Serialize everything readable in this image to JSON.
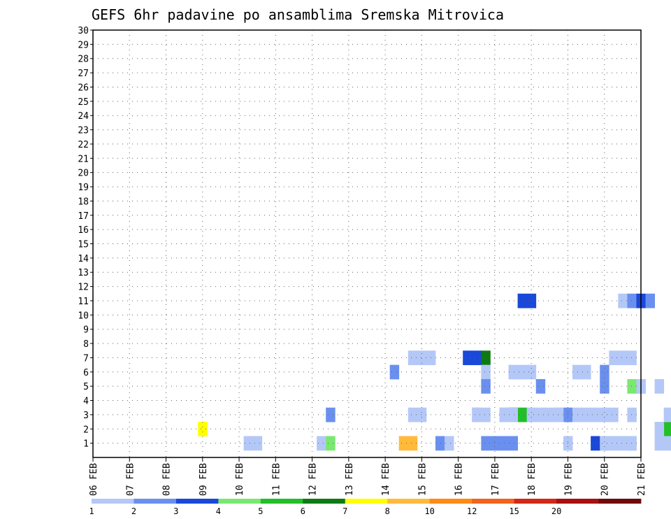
{
  "chart_data": {
    "type": "heatmap",
    "title": "GEFS 6hr padavine po ansamblima Sremska Mitrovica",
    "xlabel": "",
    "ylabel": "",
    "x_ticks": [
      "06 FEB",
      "07 FEB",
      "08 FEB",
      "09 FEB",
      "10 FEB",
      "11 FEB",
      "12 FEB",
      "13 FEB",
      "14 FEB",
      "15 FEB",
      "16 FEB",
      "17 FEB",
      "18 FEB",
      "19 FEB",
      "20 FEB",
      "21 FEB"
    ],
    "x_range_days": [
      0,
      15
    ],
    "steps_per_day": 4,
    "y_ticks": [
      "1",
      "2",
      "3",
      "4",
      "5",
      "6",
      "7",
      "8",
      "9",
      "10",
      "11",
      "12",
      "13",
      "14",
      "15",
      "16",
      "17",
      "18",
      "19",
      "20",
      "21",
      "22",
      "23",
      "24",
      "25",
      "26",
      "27",
      "28",
      "29",
      "30"
    ],
    "y_range_members": [
      0,
      30
    ],
    "grid": true,
    "color_scale": {
      "colors": [
        "#b4c8f8",
        "#6a90ef",
        "#1a48d9",
        "#7ae870",
        "#22bf28",
        "#0e7a14",
        "#ffff00",
        "#ffba3c",
        "#ff8a14",
        "#f0641e",
        "#d22818",
        "#a81010",
        "#700a0a"
      ],
      "labels": [
        "1",
        "2",
        "3",
        "4",
        "5",
        "6",
        "7",
        "8",
        "10",
        "12",
        "15",
        "20"
      ]
    },
    "cells": [
      [
        0,
        12,
        2,
        7
      ],
      [
        0,
        17,
        1,
        1
      ],
      [
        0,
        18,
        1,
        1
      ],
      [
        0,
        25,
        1,
        1
      ],
      [
        0,
        26,
        1,
        4
      ],
      [
        0,
        34,
        1,
        8
      ],
      [
        0,
        35,
        1,
        8
      ],
      [
        0,
        56,
        1,
        1
      ],
      [
        0,
        63,
        2,
        5
      ],
      [
        0,
        64,
        2,
        5
      ],
      [
        1,
        22,
        3,
        2
      ],
      [
        1,
        31,
        7,
        1
      ],
      [
        1,
        32,
        7,
        1
      ],
      [
        1,
        33,
        7,
        1
      ],
      [
        1,
        37,
        7,
        3
      ],
      [
        1,
        38,
        7,
        3
      ],
      [
        1,
        39,
        7,
        6
      ],
      [
        1,
        53,
        7,
        1
      ],
      [
        1,
        54,
        7,
        1
      ],
      [
        1,
        55,
        7,
        1
      ],
      [
        1,
        75,
        17,
        1
      ],
      [
        1,
        77,
        21,
        1
      ],
      [
        1,
        78,
        21,
        1
      ],
      [
        2,
        27,
        3,
        1
      ],
      [
        2,
        28,
        3,
        1
      ],
      [
        2,
        34,
        3,
        1
      ],
      [
        2,
        35,
        3,
        1
      ],
      [
        2,
        37,
        3,
        1
      ],
      [
        2,
        38,
        3,
        3
      ],
      [
        2,
        39,
        3,
        5
      ],
      [
        2,
        40,
        3,
        1
      ],
      [
        2,
        43,
        3,
        1
      ],
      [
        2,
        44,
        3,
        2
      ],
      [
        2,
        48,
        3,
        1
      ],
      [
        2,
        55,
        3,
        1
      ],
      [
        2,
        57,
        3,
        1
      ],
      [
        2,
        59,
        3,
        1
      ],
      [
        2,
        74,
        3,
        1
      ],
      [
        2,
        90,
        3,
        1
      ],
      [
        3,
        26,
        1,
        2
      ],
      [
        3,
        27,
        1,
        1
      ],
      [
        3,
        31,
        1,
        2
      ],
      [
        3,
        32,
        1,
        2
      ],
      [
        3,
        33,
        1,
        2
      ],
      [
        3,
        34,
        1,
        2
      ],
      [
        3,
        40,
        1,
        1
      ],
      [
        3,
        43,
        1,
        3
      ],
      [
        3,
        46,
        1,
        1
      ],
      [
        3,
        47,
        1,
        1
      ],
      [
        3,
        55,
        1,
        1
      ],
      [
        3,
        58,
        1,
        1
      ],
      [
        3,
        62,
        1,
        1
      ],
      [
        3,
        63,
        1,
        4
      ],
      [
        3,
        75,
        1,
        1
      ],
      [
        3,
        76,
        1,
        1
      ],
      [
        3,
        87,
        1,
        1
      ],
      [
        4,
        17,
        6,
        2
      ],
      [
        4,
        27,
        6,
        1
      ],
      [
        4,
        30,
        6,
        1
      ],
      [
        4,
        31,
        6,
        1
      ],
      [
        4,
        32,
        6,
        1
      ],
      [
        4,
        37,
        6,
        1
      ],
      [
        4,
        38,
        6,
        1
      ],
      [
        4,
        40,
        6,
        2
      ],
      [
        4,
        51,
        6,
        1
      ],
      [
        4,
        52,
        6,
        2
      ],
      [
        4,
        53,
        6,
        2
      ],
      [
        4,
        60,
        6,
        1
      ],
      [
        4,
        61,
        6,
        1
      ],
      [
        4,
        62,
        6,
        2
      ],
      [
        4,
        64,
        6,
        4
      ],
      [
        4,
        83,
        6,
        1
      ],
      [
        4,
        84,
        6,
        3
      ],
      [
        4,
        85,
        6,
        2
      ],
      [
        5,
        27,
        11,
        3
      ],
      [
        5,
        28,
        11,
        3
      ],
      [
        5,
        38,
        11,
        1
      ],
      [
        5,
        39,
        11,
        2
      ],
      [
        5,
        40,
        11,
        3
      ],
      [
        5,
        41,
        11,
        2
      ],
      [
        5,
        51,
        11,
        1
      ],
      [
        5,
        52,
        11,
        1
      ],
      [
        5,
        55,
        11,
        1
      ],
      [
        5,
        56,
        11,
        5
      ],
      [
        5,
        63,
        11,
        1
      ],
      [
        5,
        71,
        11,
        1
      ],
      [
        5,
        72,
        11,
        1
      ],
      [
        5,
        76,
        11,
        1
      ],
      [
        5,
        77,
        11,
        1
      ],
      [
        5,
        78,
        11,
        1
      ],
      [
        5,
        79,
        11,
        1
      ],
      [
        5,
        80,
        11,
        1
      ],
      [
        5,
        81,
        11,
        1
      ],
      [
        5,
        82,
        11,
        3
      ],
      [
        5,
        83,
        11,
        2
      ],
      [
        5,
        84,
        11,
        1
      ],
      [
        6,
        18,
        3,
        1
      ],
      [
        6,
        21,
        3,
        1
      ],
      [
        6,
        22,
        3,
        1
      ],
      [
        6,
        25,
        3,
        1
      ],
      [
        6,
        26,
        3,
        1
      ],
      [
        6,
        27,
        3,
        1
      ],
      [
        6,
        29,
        3,
        1
      ],
      [
        6,
        30,
        3,
        1
      ],
      [
        6,
        31,
        3,
        1
      ],
      [
        6,
        33,
        3,
        1
      ],
      [
        6,
        35,
        3,
        1
      ],
      [
        6,
        42,
        3,
        1
      ],
      [
        6,
        48,
        3,
        2
      ],
      [
        6,
        49,
        3,
        3
      ],
      [
        6,
        50,
        3,
        1
      ],
      [
        6,
        51,
        3,
        2
      ],
      [
        6,
        55,
        3,
        3
      ],
      [
        6,
        56,
        3,
        2
      ],
      [
        6,
        58,
        3,
        1
      ],
      [
        6,
        63,
        3,
        3
      ],
      [
        6,
        64,
        3,
        2
      ],
      [
        6,
        67,
        3,
        3
      ],
      [
        7,
        15,
        5,
        2
      ],
      [
        7,
        21,
        5,
        2
      ],
      [
        7,
        31,
        5,
        4
      ],
      [
        7,
        32,
        5,
        4
      ],
      [
        7,
        34,
        5,
        1
      ],
      [
        7,
        40,
        5,
        1
      ],
      [
        7,
        45,
        5,
        2
      ],
      [
        7,
        46,
        5,
        1
      ],
      [
        7,
        47,
        5,
        1
      ],
      [
        7,
        48,
        5,
        1
      ],
      [
        7,
        49,
        5,
        3
      ],
      [
        7,
        53,
        5,
        1
      ],
      [
        7,
        54,
        5,
        1
      ],
      [
        7,
        55,
        5,
        5
      ],
      [
        7,
        60,
        5,
        1
      ],
      [
        7,
        61,
        5,
        1
      ],
      [
        7,
        62,
        5,
        1
      ],
      [
        7,
        63,
        5,
        1
      ],
      [
        7,
        64,
        5,
        1
      ],
      [
        7,
        65,
        5,
        3
      ],
      [
        7,
        66,
        5,
        3
      ],
      [
        7,
        67,
        5,
        3
      ],
      [
        7,
        68,
        5,
        2
      ],
      [
        7,
        69,
        5,
        1
      ],
      [
        7,
        70,
        5,
        1
      ],
      [
        7,
        71,
        5,
        1
      ],
      [
        7,
        72,
        5,
        1
      ],
      [
        8,
        24,
        1,
        1
      ],
      [
        8,
        25,
        1,
        1
      ],
      [
        8,
        27,
        1,
        1
      ],
      [
        8,
        30,
        1,
        1
      ],
      [
        8,
        31,
        1,
        1
      ],
      [
        8,
        32,
        1,
        1
      ],
      [
        8,
        33,
        1,
        1
      ],
      [
        8,
        34,
        1,
        1
      ],
      [
        8,
        35,
        1,
        1
      ],
      [
        8,
        36,
        1,
        1
      ],
      [
        8,
        37,
        1,
        1
      ],
      [
        8,
        38,
        1,
        1
      ],
      [
        8,
        39,
        1,
        1
      ],
      [
        8,
        40,
        1,
        1
      ],
      [
        8,
        41,
        1,
        1
      ],
      [
        8,
        42,
        1,
        1
      ],
      [
        8,
        43,
        1,
        1
      ],
      [
        8,
        44,
        1,
        1
      ],
      [
        8,
        45,
        1,
        1
      ],
      [
        8,
        46,
        1,
        1
      ],
      [
        8,
        47,
        1,
        1
      ],
      [
        8,
        48,
        1,
        1
      ],
      [
        8,
        49,
        1,
        1
      ],
      [
        8,
        50,
        1,
        1
      ],
      [
        8,
        51,
        1,
        1
      ],
      [
        8,
        52,
        1,
        1
      ],
      [
        8,
        53,
        1,
        1
      ],
      [
        8,
        54,
        1,
        1
      ],
      [
        8,
        55,
        1,
        1
      ],
      [
        9,
        20,
        5,
        2
      ],
      [
        9,
        24,
        5,
        1
      ],
      [
        9,
        33,
        5,
        1
      ],
      [
        9,
        34,
        5,
        1
      ],
      [
        9,
        35,
        5,
        2
      ],
      [
        9,
        36,
        5,
        3
      ],
      [
        9,
        37,
        5,
        4
      ],
      [
        9,
        38,
        5,
        4
      ],
      [
        9,
        39,
        5,
        3
      ],
      [
        9,
        40,
        5,
        1
      ],
      [
        9,
        41,
        5,
        1
      ],
      [
        9,
        43,
        5,
        2
      ],
      [
        9,
        45,
        5,
        4
      ],
      [
        9,
        47,
        5,
        3
      ],
      [
        9,
        48,
        5,
        2
      ],
      [
        9,
        49,
        5,
        1
      ],
      [
        9,
        51,
        5,
        2
      ],
      [
        9,
        52,
        5,
        4
      ],
      [
        9,
        53,
        5,
        5
      ],
      [
        9,
        55,
        5,
        1
      ],
      [
        9,
        57,
        5,
        3
      ],
      [
        9,
        58,
        5,
        1
      ],
      [
        9,
        61,
        5,
        1
      ],
      [
        9,
        62,
        5,
        1
      ],
      [
        9,
        63,
        5,
        1
      ],
      [
        10,
        22,
        2,
        1
      ],
      [
        10,
        27,
        2,
        1
      ],
      [
        10,
        32,
        2,
        2
      ],
      [
        10,
        35,
        2,
        2
      ],
      [
        10,
        37,
        2,
        2
      ],
      [
        10,
        38,
        2,
        1
      ],
      [
        10,
        40,
        2,
        1
      ],
      [
        10,
        48,
        2,
        1
      ],
      [
        10,
        54,
        2,
        1
      ],
      [
        11,
        26,
        2,
        2
      ],
      [
        11,
        27,
        2,
        1
      ],
      [
        11,
        28,
        2,
        1
      ],
      [
        11,
        30,
        2,
        1
      ],
      [
        11,
        32,
        2,
        1
      ],
      [
        11,
        37,
        2,
        1
      ],
      [
        11,
        38,
        2,
        1
      ],
      [
        11,
        41,
        2,
        3
      ],
      [
        11,
        48,
        2,
        1
      ],
      [
        11,
        51,
        2,
        1
      ],
      [
        11,
        56,
        2,
        1
      ],
      [
        11,
        57,
        2,
        1
      ],
      [
        11,
        58,
        2,
        1
      ],
      [
        11,
        60,
        2,
        1
      ],
      [
        11,
        61,
        2,
        1
      ],
      [
        11,
        62,
        2,
        1
      ],
      [
        11,
        63,
        2,
        1
      ],
      [
        11,
        64,
        2,
        1
      ],
      [
        12,
        24,
        5,
        1
      ],
      [
        12,
        26,
        5,
        1
      ],
      [
        12,
        27,
        5,
        1
      ],
      [
        12,
        28,
        5,
        4
      ],
      [
        12,
        29,
        5,
        1
      ],
      [
        12,
        30,
        5,
        1
      ],
      [
        12,
        31,
        5,
        1
      ],
      [
        12,
        32,
        5,
        1
      ],
      [
        12,
        37,
        5,
        1
      ],
      [
        12,
        38,
        5,
        1
      ],
      [
        12,
        40,
        5,
        1
      ],
      [
        12,
        42,
        5,
        2
      ],
      [
        12,
        48,
        5,
        1
      ],
      [
        12,
        52,
        5,
        1
      ],
      [
        12,
        53,
        5,
        1
      ],
      [
        12,
        55,
        5,
        2
      ],
      [
        12,
        56,
        5,
        3
      ],
      [
        12,
        57,
        5,
        1
      ],
      [
        12,
        59,
        5,
        2
      ],
      [
        13,
        26,
        9,
        1
      ],
      [
        13,
        27,
        9,
        1
      ],
      [
        13,
        31,
        9,
        1
      ],
      [
        13,
        37,
        9,
        1
      ],
      [
        13,
        38,
        9,
        1
      ],
      [
        13,
        39,
        9,
        1
      ],
      [
        13,
        40,
        9,
        1
      ],
      [
        13,
        41,
        9,
        4
      ],
      [
        13,
        52,
        9,
        1
      ],
      [
        13,
        54,
        9,
        1
      ],
      [
        13,
        55,
        9,
        1
      ],
      [
        13,
        56,
        9,
        1
      ],
      [
        13,
        58,
        9,
        1
      ],
      [
        13,
        63,
        9,
        1
      ],
      [
        13,
        65,
        9,
        1
      ],
      [
        13,
        67,
        9,
        1
      ],
      [
        13,
        70,
        9,
        1
      ],
      [
        13,
        74,
        9,
        1
      ],
      [
        13,
        78,
        9,
        1
      ],
      [
        13,
        79,
        9,
        1
      ],
      [
        13,
        80,
        9,
        1
      ],
      [
        14,
        19,
        3,
        1
      ],
      [
        14,
        28,
        3,
        1
      ],
      [
        14,
        32,
        3,
        1
      ],
      [
        14,
        33,
        3,
        1
      ],
      [
        14,
        36,
        3,
        1
      ],
      [
        14,
        38,
        3,
        1
      ],
      [
        14,
        40,
        3,
        1
      ],
      [
        14,
        42,
        3,
        1
      ],
      [
        14,
        43,
        3,
        1
      ],
      [
        14,
        48,
        3,
        1
      ],
      [
        14,
        53,
        3,
        1
      ],
      [
        14,
        58,
        3,
        1
      ],
      [
        14,
        59,
        3,
        1
      ],
      [
        14,
        68,
        3,
        1
      ],
      [
        15,
        15,
        3,
        2
      ],
      [
        15,
        16,
        3,
        2
      ],
      [
        15,
        23,
        3,
        1
      ],
      [
        15,
        24,
        3,
        1
      ],
      [
        15,
        36,
        3,
        1
      ],
      [
        15,
        37,
        3,
        1
      ],
      [
        15,
        52,
        3,
        1
      ],
      [
        15,
        54,
        3,
        1
      ],
      [
        15,
        56,
        3,
        1
      ],
      [
        15,
        57,
        3,
        1
      ],
      [
        15,
        58,
        3,
        1
      ]
    ]
  }
}
